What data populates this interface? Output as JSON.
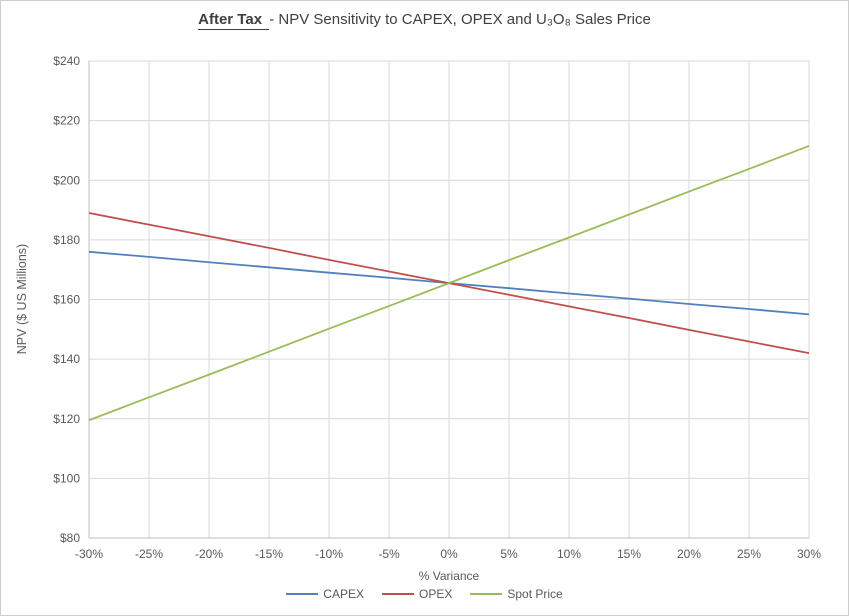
{
  "title": {
    "prefix": "After Tax ",
    "rest": "- NPV Sensitivity to CAPEX, OPEX and U₃O₈ Sales Price"
  },
  "chart_data": {
    "type": "line",
    "title": "After Tax - NPV Sensitivity to CAPEX, OPEX and U3O8 Sales Price",
    "xlabel": "% Variance",
    "ylabel": "NPV ($ US Millions)",
    "xlim": [
      -30,
      30
    ],
    "ylim": [
      80,
      240
    ],
    "grid": true,
    "legend_position": "bottom",
    "gridline_color": "#d9d9d9",
    "axis_color": "#c0c0c0",
    "tick_text_color": "#595959",
    "x": [
      -30,
      -25,
      -20,
      -15,
      -10,
      -5,
      0,
      5,
      10,
      15,
      20,
      25,
      30
    ],
    "xtick_labels": [
      "-30%",
      "-25%",
      "-20%",
      "-15%",
      "-10%",
      "-5%",
      "0%",
      "5%",
      "10%",
      "15%",
      "20%",
      "25%",
      "30%"
    ],
    "ytick_values": [
      80,
      100,
      120,
      140,
      160,
      180,
      200,
      220,
      240
    ],
    "ytick_labels": [
      "$80",
      "$100",
      "$120",
      "$140",
      "$160",
      "$180",
      "$200",
      "$220",
      "$240"
    ],
    "series": [
      {
        "name": "CAPEX",
        "color": "#4F81BD",
        "values": [
          176.0,
          174.3,
          172.5,
          170.8,
          169.0,
          167.3,
          165.5,
          163.8,
          162.0,
          160.3,
          158.5,
          156.8,
          155.0
        ]
      },
      {
        "name": "OPEX",
        "color": "#C0504D",
        "values": [
          189.0,
          185.1,
          181.2,
          177.3,
          173.3,
          169.4,
          165.5,
          161.6,
          157.7,
          153.8,
          149.8,
          145.9,
          142.0
        ]
      },
      {
        "name": "Spot Price",
        "color": "#9BBB59",
        "values": [
          119.5,
          127.2,
          134.8,
          142.5,
          150.2,
          157.8,
          165.5,
          173.2,
          180.8,
          188.5,
          196.2,
          203.8,
          211.5
        ]
      }
    ]
  }
}
